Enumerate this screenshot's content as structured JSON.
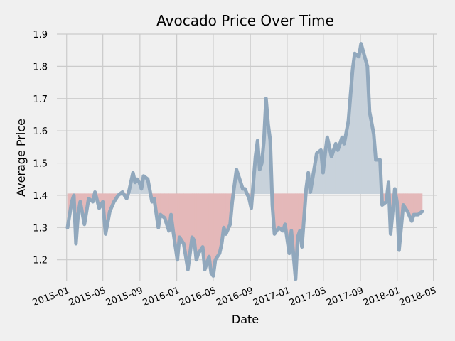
{
  "chart_data": {
    "type": "line",
    "title": "Avocado Price Over Time",
    "xlabel": "Date",
    "ylabel": "Average Price",
    "baseline": 1.405,
    "xlim": [
      "2015-01-04",
      "2018-03-25"
    ],
    "ylim": [
      1.12,
      1.9
    ],
    "y_ticks": [
      1.2,
      1.3,
      1.4,
      1.5,
      1.6,
      1.7,
      1.8,
      1.9
    ],
    "x_ticks": [
      {
        "date": "2015-01-01",
        "label": "2015-01"
      },
      {
        "date": "2015-05-01",
        "label": "2015-05"
      },
      {
        "date": "2015-09-01",
        "label": "2015-09"
      },
      {
        "date": "2016-01-01",
        "label": "2016-01"
      },
      {
        "date": "2016-05-01",
        "label": "2016-05"
      },
      {
        "date": "2016-09-01",
        "label": "2016-09"
      },
      {
        "date": "2017-01-01",
        "label": "2017-01"
      },
      {
        "date": "2017-05-01",
        "label": "2017-05"
      },
      {
        "date": "2017-09-01",
        "label": "2017-09"
      },
      {
        "date": "2018-01-01",
        "label": "2018-01"
      },
      {
        "date": "2018-05-01",
        "label": "2018-05"
      }
    ],
    "grid": true,
    "colors": {
      "line": "#91a8bd",
      "fill_above": "#c8d2db",
      "fill_below": "#e4b8b9",
      "grid": "#cbcbcb",
      "background": "#f0f0f0"
    },
    "series": [
      {
        "x": [
          "2015-01-04",
          "2015-01-18",
          "2015-01-25",
          "2015-02-01",
          "2015-02-08",
          "2015-02-15",
          "2015-03-01",
          "2015-03-15",
          "2015-03-29",
          "2015-04-05",
          "2015-04-19",
          "2015-05-01",
          "2015-05-10",
          "2015-05-24",
          "2015-06-07",
          "2015-06-21",
          "2015-07-05",
          "2015-07-19",
          "2015-07-26",
          "2015-08-09",
          "2015-08-16",
          "2015-08-23",
          "2015-08-30",
          "2015-09-06",
          "2015-09-13",
          "2015-09-27",
          "2015-10-11",
          "2015-10-18",
          "2015-11-01",
          "2015-11-08",
          "2015-11-22",
          "2015-12-06",
          "2015-12-13",
          "2015-12-20",
          "2016-01-03",
          "2016-01-10",
          "2016-01-24",
          "2016-02-07",
          "2016-02-21",
          "2016-02-28",
          "2016-03-06",
          "2016-03-13",
          "2016-03-27",
          "2016-04-03",
          "2016-04-17",
          "2016-04-24",
          "2016-05-01",
          "2016-05-08",
          "2016-05-22",
          "2016-05-29",
          "2016-06-05",
          "2016-06-12",
          "2016-06-26",
          "2016-07-03",
          "2016-07-17",
          "2016-07-24",
          "2016-08-07",
          "2016-08-14",
          "2016-08-28",
          "2016-09-04",
          "2016-09-18",
          "2016-09-25",
          "2016-10-02",
          "2016-10-09",
          "2016-10-16",
          "2016-10-23",
          "2016-10-30",
          "2016-11-06",
          "2016-11-13",
          "2016-11-20",
          "2016-12-04",
          "2016-12-18",
          "2016-12-25",
          "2017-01-08",
          "2017-01-15",
          "2017-01-29",
          "2017-02-05",
          "2017-02-12",
          "2017-02-19",
          "2017-03-05",
          "2017-03-12",
          "2017-03-19",
          "2017-03-26",
          "2017-04-09",
          "2017-04-23",
          "2017-04-30",
          "2017-05-07",
          "2017-05-14",
          "2017-05-28",
          "2017-06-11",
          "2017-06-18",
          "2017-07-02",
          "2017-07-09",
          "2017-07-23",
          "2017-08-06",
          "2017-08-13",
          "2017-08-27",
          "2017-09-03",
          "2017-09-24",
          "2017-10-01",
          "2017-10-15",
          "2017-10-22",
          "2017-11-05",
          "2017-11-12",
          "2017-11-26",
          "2017-12-03",
          "2017-12-10",
          "2017-12-24",
          "2017-12-31",
          "2018-01-07",
          "2018-01-21",
          "2018-01-28",
          "2018-02-04",
          "2018-02-18",
          "2018-02-25",
          "2018-03-11",
          "2018-03-25"
        ],
        "values": [
          1.3,
          1.38,
          1.4,
          1.25,
          1.34,
          1.38,
          1.31,
          1.39,
          1.38,
          1.41,
          1.36,
          1.38,
          1.28,
          1.35,
          1.38,
          1.4,
          1.41,
          1.39,
          1.41,
          1.47,
          1.44,
          1.45,
          1.44,
          1.42,
          1.46,
          1.45,
          1.38,
          1.39,
          1.3,
          1.34,
          1.33,
          1.29,
          1.34,
          1.29,
          1.2,
          1.27,
          1.25,
          1.17,
          1.27,
          1.26,
          1.2,
          1.22,
          1.24,
          1.17,
          1.21,
          1.16,
          1.15,
          1.2,
          1.22,
          1.25,
          1.3,
          1.28,
          1.31,
          1.38,
          1.48,
          1.46,
          1.42,
          1.42,
          1.39,
          1.36,
          1.52,
          1.57,
          1.48,
          1.5,
          1.57,
          1.7,
          1.62,
          1.57,
          1.37,
          1.28,
          1.3,
          1.29,
          1.31,
          1.22,
          1.29,
          1.14,
          1.27,
          1.29,
          1.24,
          1.42,
          1.47,
          1.41,
          1.45,
          1.53,
          1.54,
          1.47,
          1.53,
          1.58,
          1.52,
          1.56,
          1.54,
          1.58,
          1.56,
          1.63,
          1.79,
          1.84,
          1.83,
          1.87,
          1.8,
          1.66,
          1.59,
          1.51,
          1.51,
          1.37,
          1.38,
          1.44,
          1.28,
          1.42,
          1.38,
          1.23,
          1.37,
          1.36,
          1.35,
          1.32,
          1.34,
          1.34,
          1.35
        ]
      }
    ]
  }
}
